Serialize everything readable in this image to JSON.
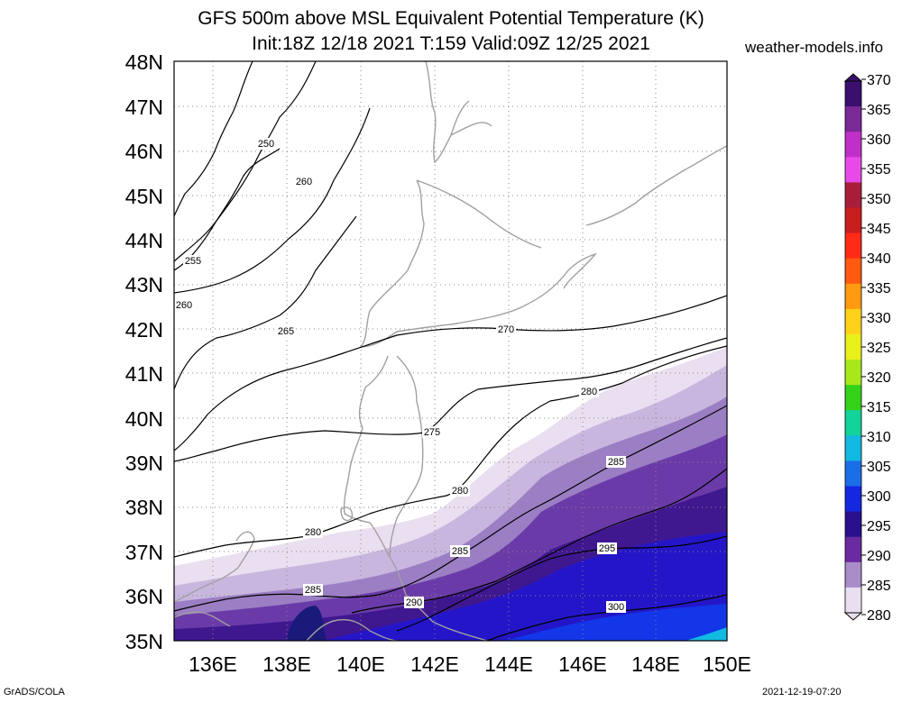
{
  "header": {
    "title_line1": "GFS 500m above MSL Equivalent Potential Temperature (K)",
    "title_line2": "Init:18Z 12/18 2021 T:159 Valid:09Z 12/25 2021",
    "site": "weather-models.info"
  },
  "footer": {
    "left": "GrADS/COLA",
    "right": "2021-12-19-07:20"
  },
  "map": {
    "lat_labels": [
      "48N",
      "47N",
      "46N",
      "45N",
      "44N",
      "43N",
      "42N",
      "41N",
      "40N",
      "39N",
      "38N",
      "37N",
      "36N",
      "35N"
    ],
    "lon_labels": [
      "136E",
      "138E",
      "140E",
      "142E",
      "144E",
      "146E",
      "148E",
      "150E"
    ],
    "contour_labels": [
      "250",
      "260",
      "255",
      "260",
      "265",
      "270",
      "275",
      "280",
      "280",
      "285",
      "280",
      "285",
      "285",
      "290",
      "295",
      "300"
    ]
  },
  "colorbar": {
    "labels": [
      "370",
      "365",
      "360",
      "355",
      "350",
      "345",
      "340",
      "335",
      "330",
      "325",
      "320",
      "315",
      "310",
      "305",
      "300",
      "295",
      "290",
      "285",
      "280"
    ],
    "colors": [
      "#3a0f6e",
      "#7a2a96",
      "#c030c8",
      "#e84ae8",
      "#a81e3a",
      "#c81e1e",
      "#ff2b16",
      "#ff5a0f",
      "#ff9a10",
      "#ffd21a",
      "#e8f01a",
      "#a8e81a",
      "#35d21a",
      "#12d39a",
      "#12b9e0",
      "#1a6ee8",
      "#1428e0",
      "#2a108a",
      "#6a2aa0",
      "#a98cc8",
      "#e9dff0"
    ]
  }
}
